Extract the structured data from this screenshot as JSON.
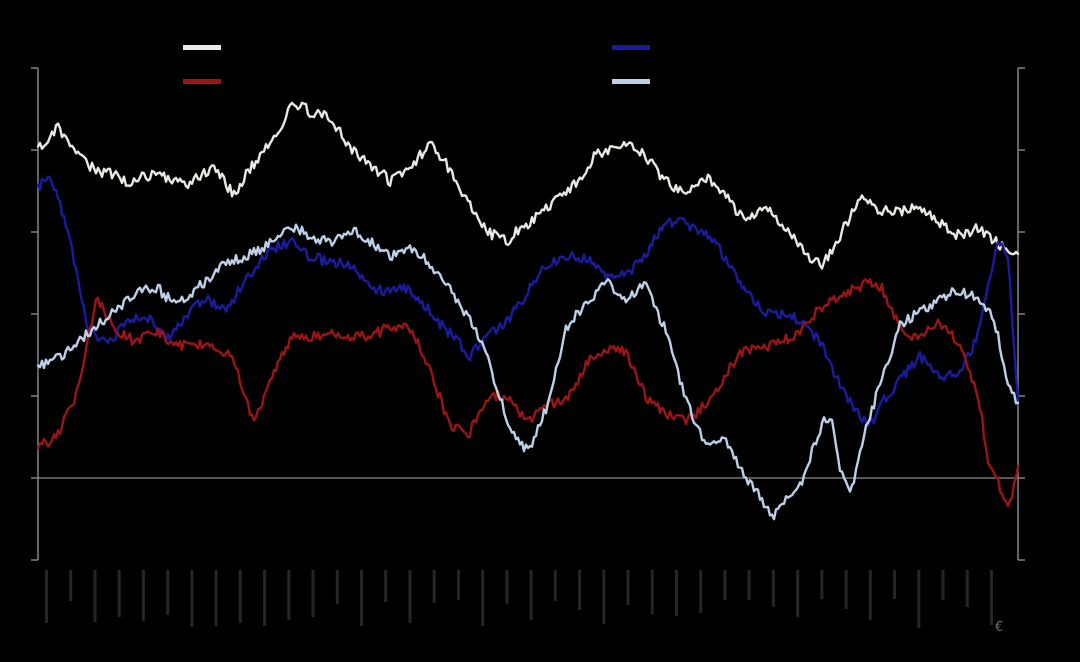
{
  "page": {
    "background": "#000000"
  },
  "chart": {
    "title": "",
    "footer_glyph": "€",
    "legend": {
      "items": [
        {
          "id": "white-series",
          "label": "",
          "color": "#eae8e2"
        },
        {
          "id": "dark-red-series",
          "label": "",
          "color": "#9a1515"
        },
        {
          "id": "navy-series",
          "label": "",
          "color": "#1b1b9e"
        },
        {
          "id": "light-blue-series",
          "label": "",
          "color": "#bdd0e7"
        }
      ]
    }
  },
  "chart_data": {
    "type": "line",
    "title": "",
    "xlabel": "",
    "ylabel": "",
    "x_range": [
      0,
      1
    ],
    "ylim": [
      -20,
      100
    ],
    "y_tick_step": 20,
    "gridlines": [
      0
    ],
    "axis_color": "#8c8c8c",
    "grid_on": true,
    "legend_position": "top-two-columns",
    "x_tick_label_strip": {
      "count": 40,
      "color": "#262626"
    },
    "style": {
      "line_width": 2.4,
      "jitter": 1.3
    },
    "series": [
      {
        "name": "white",
        "color": "#eae8e2",
        "points": [
          [
            0,
            80
          ],
          [
            0.02,
            84
          ],
          [
            0.04,
            79
          ],
          [
            0.06,
            74
          ],
          [
            0.09,
            70
          ],
          [
            0.12,
            75
          ],
          [
            0.15,
            71
          ],
          [
            0.18,
            78
          ],
          [
            0.2,
            71
          ],
          [
            0.23,
            80
          ],
          [
            0.26,
            93
          ],
          [
            0.28,
            88
          ],
          [
            0.3,
            86
          ],
          [
            0.32,
            80
          ],
          [
            0.34,
            74
          ],
          [
            0.36,
            70
          ],
          [
            0.38,
            76
          ],
          [
            0.4,
            82
          ],
          [
            0.43,
            71
          ],
          [
            0.46,
            62
          ],
          [
            0.48,
            59
          ],
          [
            0.5,
            63
          ],
          [
            0.53,
            70
          ],
          [
            0.55,
            71
          ],
          [
            0.57,
            78
          ],
          [
            0.6,
            81
          ],
          [
            0.62,
            76
          ],
          [
            0.64,
            71
          ],
          [
            0.66,
            70
          ],
          [
            0.68,
            73
          ],
          [
            0.7,
            69
          ],
          [
            0.72,
            65
          ],
          [
            0.74,
            68
          ],
          [
            0.76,
            62
          ],
          [
            0.78,
            57
          ],
          [
            0.8,
            53
          ],
          [
            0.82,
            59
          ],
          [
            0.84,
            67
          ],
          [
            0.86,
            65
          ],
          [
            0.88,
            63
          ],
          [
            0.9,
            64
          ],
          [
            0.92,
            62
          ],
          [
            0.94,
            59
          ],
          [
            0.96,
            60
          ],
          [
            0.98,
            58
          ],
          [
            1.0,
            56
          ]
        ]
      },
      {
        "name": "navy",
        "color": "#1b1b9e",
        "points": [
          [
            0,
            70
          ],
          [
            0.01,
            74
          ],
          [
            0.03,
            60
          ],
          [
            0.05,
            38
          ],
          [
            0.07,
            35
          ],
          [
            0.09,
            38
          ],
          [
            0.11,
            41
          ],
          [
            0.13,
            36
          ],
          [
            0.15,
            40
          ],
          [
            0.17,
            43
          ],
          [
            0.19,
            41
          ],
          [
            0.21,
            47
          ],
          [
            0.24,
            54
          ],
          [
            0.26,
            57
          ],
          [
            0.28,
            53
          ],
          [
            0.3,
            51
          ],
          [
            0.32,
            53
          ],
          [
            0.34,
            48
          ],
          [
            0.36,
            46
          ],
          [
            0.38,
            47
          ],
          [
            0.4,
            43
          ],
          [
            0.42,
            36
          ],
          [
            0.44,
            29
          ],
          [
            0.46,
            36
          ],
          [
            0.48,
            38
          ],
          [
            0.5,
            43
          ],
          [
            0.52,
            51
          ],
          [
            0.54,
            54
          ],
          [
            0.56,
            52
          ],
          [
            0.58,
            48
          ],
          [
            0.6,
            51
          ],
          [
            0.62,
            56
          ],
          [
            0.64,
            63
          ],
          [
            0.66,
            64
          ],
          [
            0.68,
            62
          ],
          [
            0.7,
            54
          ],
          [
            0.72,
            46
          ],
          [
            0.74,
            41
          ],
          [
            0.76,
            38
          ],
          [
            0.78,
            36
          ],
          [
            0.8,
            32
          ],
          [
            0.82,
            21
          ],
          [
            0.84,
            13
          ],
          [
            0.85,
            12
          ],
          [
            0.86,
            19
          ],
          [
            0.88,
            26
          ],
          [
            0.9,
            30
          ],
          [
            0.92,
            26
          ],
          [
            0.94,
            28
          ],
          [
            0.96,
            36
          ],
          [
            0.98,
            58
          ],
          [
            0.99,
            53
          ],
          [
            1.0,
            19
          ]
        ]
      },
      {
        "name": "dark-red",
        "color": "#9a1515",
        "points": [
          [
            0,
            10
          ],
          [
            0.02,
            12
          ],
          [
            0.04,
            21
          ],
          [
            0.06,
            45
          ],
          [
            0.08,
            36
          ],
          [
            0.1,
            32
          ],
          [
            0.12,
            34
          ],
          [
            0.14,
            32
          ],
          [
            0.16,
            31
          ],
          [
            0.18,
            30
          ],
          [
            0.2,
            29
          ],
          [
            0.22,
            15
          ],
          [
            0.24,
            25
          ],
          [
            0.26,
            36
          ],
          [
            0.28,
            37
          ],
          [
            0.3,
            36
          ],
          [
            0.32,
            34
          ],
          [
            0.34,
            36
          ],
          [
            0.36,
            37
          ],
          [
            0.38,
            34
          ],
          [
            0.4,
            26
          ],
          [
            0.42,
            12
          ],
          [
            0.44,
            9
          ],
          [
            0.46,
            19
          ],
          [
            0.48,
            21
          ],
          [
            0.5,
            14
          ],
          [
            0.52,
            18
          ],
          [
            0.54,
            21
          ],
          [
            0.56,
            30
          ],
          [
            0.58,
            32
          ],
          [
            0.6,
            31
          ],
          [
            0.62,
            21
          ],
          [
            0.64,
            14
          ],
          [
            0.66,
            12
          ],
          [
            0.68,
            17
          ],
          [
            0.7,
            23
          ],
          [
            0.72,
            29
          ],
          [
            0.74,
            32
          ],
          [
            0.76,
            34
          ],
          [
            0.78,
            36
          ],
          [
            0.8,
            43
          ],
          [
            0.82,
            47
          ],
          [
            0.84,
            48
          ],
          [
            0.86,
            47
          ],
          [
            0.88,
            38
          ],
          [
            0.9,
            34
          ],
          [
            0.92,
            36
          ],
          [
            0.94,
            32
          ],
          [
            0.96,
            19
          ],
          [
            0.97,
            2
          ],
          [
            0.98,
            -3
          ],
          [
            0.99,
            -10
          ],
          [
            1.0,
            2
          ]
        ]
      },
      {
        "name": "light-blue",
        "color": "#bdd0e7",
        "points": [
          [
            0,
            26
          ],
          [
            0.02,
            29
          ],
          [
            0.04,
            31
          ],
          [
            0.06,
            35
          ],
          [
            0.08,
            41
          ],
          [
            0.1,
            45
          ],
          [
            0.12,
            46
          ],
          [
            0.14,
            43
          ],
          [
            0.16,
            48
          ],
          [
            0.18,
            51
          ],
          [
            0.2,
            54
          ],
          [
            0.22,
            57
          ],
          [
            0.24,
            58
          ],
          [
            0.26,
            60
          ],
          [
            0.28,
            58
          ],
          [
            0.3,
            57
          ],
          [
            0.32,
            58
          ],
          [
            0.34,
            56
          ],
          [
            0.36,
            54
          ],
          [
            0.38,
            56
          ],
          [
            0.4,
            52
          ],
          [
            0.42,
            48
          ],
          [
            0.44,
            41
          ],
          [
            0.46,
            29
          ],
          [
            0.48,
            14
          ],
          [
            0.5,
            8
          ],
          [
            0.52,
            17
          ],
          [
            0.54,
            36
          ],
          [
            0.56,
            43
          ],
          [
            0.58,
            46
          ],
          [
            0.6,
            41
          ],
          [
            0.62,
            47
          ],
          [
            0.64,
            36
          ],
          [
            0.66,
            19
          ],
          [
            0.68,
            9
          ],
          [
            0.7,
            12
          ],
          [
            0.72,
            2
          ],
          [
            0.74,
            -5
          ],
          [
            0.75,
            -8
          ],
          [
            0.76,
            -4
          ],
          [
            0.78,
            0
          ],
          [
            0.8,
            12
          ],
          [
            0.81,
            14
          ],
          [
            0.82,
            0
          ],
          [
            0.83,
            -3
          ],
          [
            0.84,
            7
          ],
          [
            0.86,
            21
          ],
          [
            0.88,
            36
          ],
          [
            0.9,
            41
          ],
          [
            0.92,
            43
          ],
          [
            0.94,
            45
          ],
          [
            0.96,
            46
          ],
          [
            0.97,
            43
          ],
          [
            0.98,
            36
          ],
          [
            0.99,
            24
          ],
          [
            1.0,
            18
          ]
        ]
      }
    ]
  }
}
